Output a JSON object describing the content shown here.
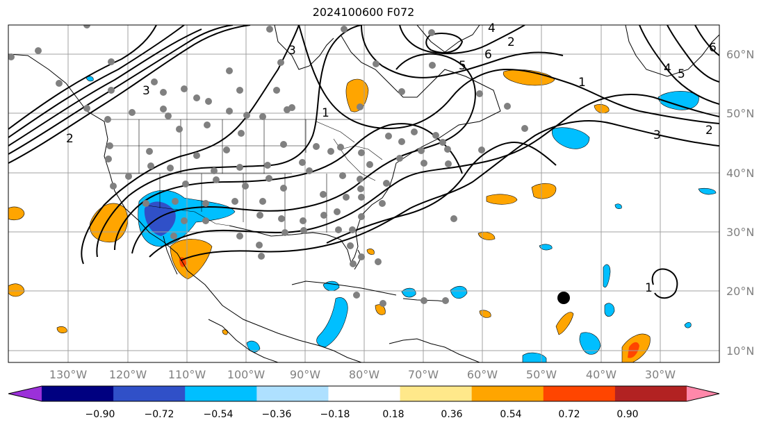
{
  "title": "2024100600 F072",
  "map": {
    "lon_labels": [
      "130°W",
      "120°W",
      "110°W",
      "100°W",
      "90°W",
      "80°W",
      "70°W",
      "60°W",
      "50°W",
      "40°W",
      "30°W"
    ],
    "lat_labels": [
      "60°N",
      "50°N",
      "40°N",
      "30°N",
      "20°N",
      "10°N"
    ],
    "contour_labels": [
      "2",
      "3",
      "1",
      "2",
      "3",
      "4",
      "5",
      "6",
      "1",
      "2",
      "3",
      "4",
      "5",
      "6",
      "1"
    ],
    "grid": true,
    "gray_dot_color": "#808080",
    "storm_marker_color": "#000000"
  },
  "colorbar": {
    "tick_labels": [
      "−0.90",
      "−0.72",
      "−0.54",
      "−0.36",
      "−0.18",
      "0.18",
      "0.36",
      "0.54",
      "0.72",
      "0.90"
    ],
    "colors": [
      "#9b30d9",
      "#000080",
      "#3050c8",
      "#00bfff",
      "#aee0ff",
      "#ffffff",
      "#ffe88a",
      "#ffa500",
      "#ff4500",
      "#b22222",
      "#ff88aa"
    ],
    "extend": "both"
  }
}
